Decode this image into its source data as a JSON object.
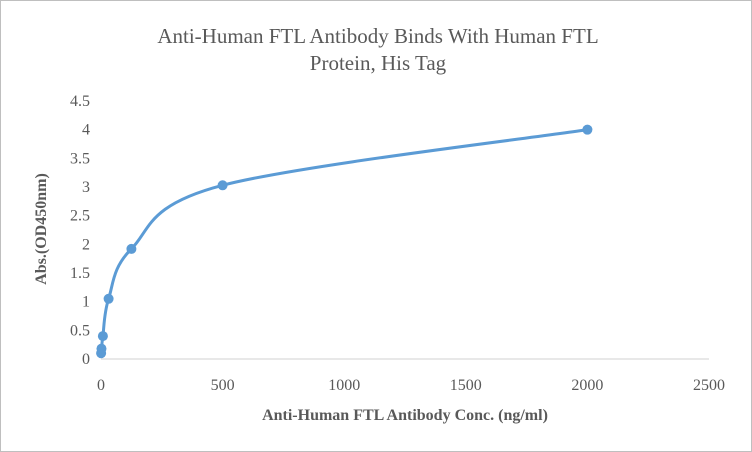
{
  "chart_data": {
    "type": "scatter",
    "title_lines": [
      "Anti-Human FTL Antibody Binds With Human FTL",
      "Protein, His Tag"
    ],
    "xlabel": "Anti-Human FTL Antibody Conc. (ng/ml)",
    "ylabel": "Abs.(OD450nm)",
    "xlim": [
      0,
      2500
    ],
    "ylim": [
      0,
      4.5
    ],
    "x_ticks": [
      "0",
      "500",
      "1000",
      "1500",
      "2000",
      "2500"
    ],
    "y_ticks": [
      "0",
      "0.5",
      "1",
      "1.5",
      "2",
      "2.5",
      "3",
      "3.5",
      "4",
      "4.5"
    ],
    "grid": false,
    "legend": "none",
    "line_style": "smoothed",
    "color": "#5b9bd5",
    "series": [
      {
        "x": [
          0.49,
          1.95,
          7.8,
          31.25,
          125,
          500,
          2000
        ],
        "y": [
          0.1,
          0.18,
          0.4,
          1.05,
          1.92,
          3.03,
          4.0
        ]
      }
    ]
  }
}
